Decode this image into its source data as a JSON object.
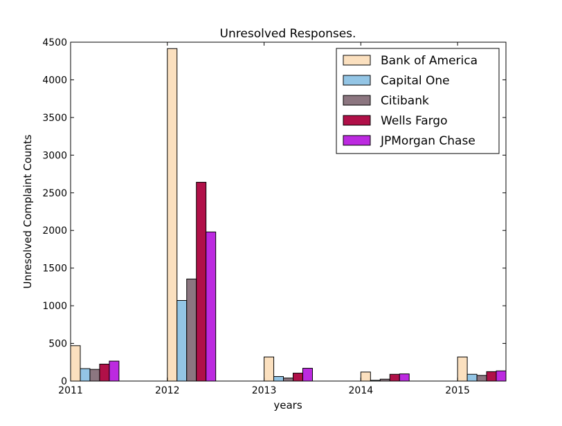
{
  "chart_data": {
    "type": "bar",
    "title": "Unresolved Responses.",
    "xlabel": "years",
    "ylabel": "Unresolved Complaint Counts",
    "categories": [
      "2011",
      "2012",
      "2013",
      "2014",
      "2015"
    ],
    "x_ticks": [
      "2011",
      "2012",
      "2013",
      "2014",
      "2015"
    ],
    "y_ticks": [
      "0",
      "500",
      "1000",
      "1500",
      "2000",
      "2500",
      "3000",
      "3500",
      "4000",
      "4500"
    ],
    "ylim": [
      0,
      4500
    ],
    "xlim": [
      2011,
      2015.5
    ],
    "grid": false,
    "legend_position": "top-right",
    "series": [
      {
        "name": "Bank of America",
        "color": "#fbe0bf",
        "values": [
          470,
          4415,
          320,
          120,
          320
        ]
      },
      {
        "name": "Capital One",
        "color": "#93c5e5",
        "values": [
          165,
          1070,
          60,
          10,
          90
        ]
      },
      {
        "name": "Citibank",
        "color": "#8c7680",
        "values": [
          155,
          1355,
          40,
          25,
          75
        ]
      },
      {
        "name": "Wells Fargo",
        "color": "#b01048",
        "values": [
          225,
          2640,
          105,
          90,
          125
        ]
      },
      {
        "name": "JPMorgan Chase",
        "color": "#bc2ae0",
        "values": [
          265,
          1980,
          170,
          95,
          135
        ]
      }
    ]
  }
}
